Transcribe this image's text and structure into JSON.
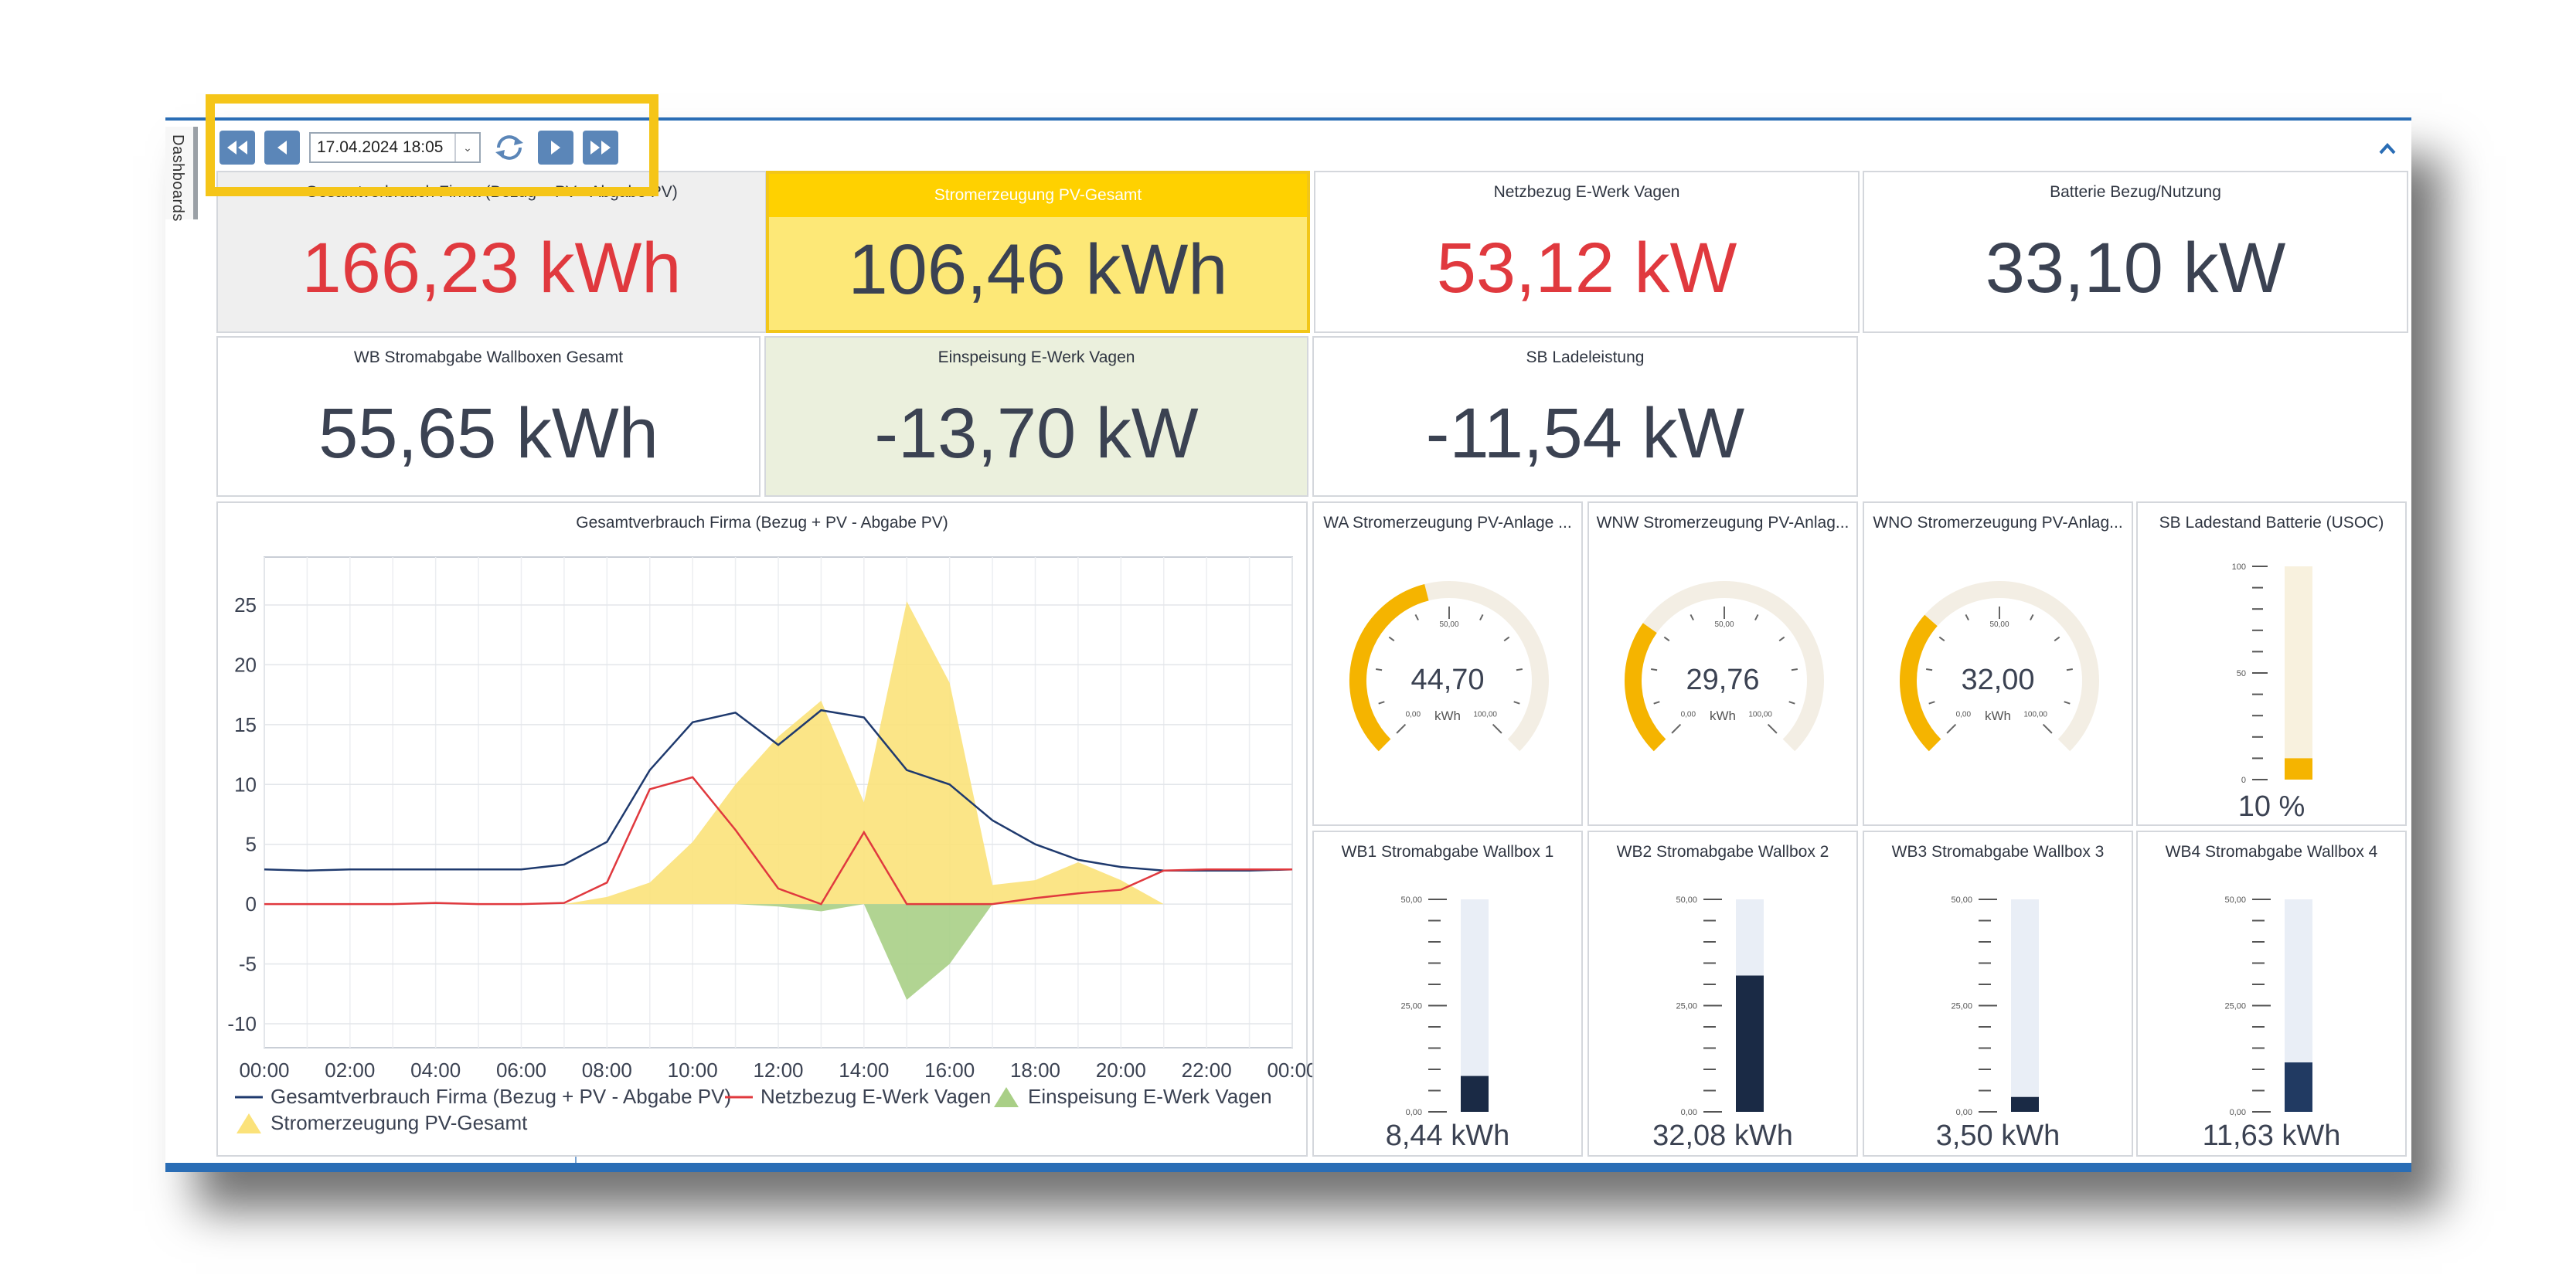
{
  "toolbar": {
    "datetime_value": "17.04.2024 18:05"
  },
  "sidebar": {
    "tab_label": "Dashboards"
  },
  "colors": {
    "accent_blue": "#2a6db5",
    "button_blue": "#5b86b8",
    "highlight": "#f5c518",
    "value_red": "#e0393e",
    "value_dark": "#3b4252",
    "gauge_orange": "#f5b400",
    "bar_navy": "#1a2a45"
  },
  "cards": {
    "gesamtverbrauch": {
      "title": "Gesamtverbrauch Firma (Bezug + PV - Abgabe PV)",
      "value": "166,23 kWh"
    },
    "stromerzeugung": {
      "title": "Stromerzeugung PV-Gesamt",
      "value": "106,46 kWh"
    },
    "netzbezug": {
      "title": "Netzbezug E-Werk Vagen",
      "value": "53,12 kW"
    },
    "batterie": {
      "title": "Batterie Bezug/Nutzung",
      "value": "33,10 kW"
    },
    "wallboxen": {
      "title": "WB Stromabgabe Wallboxen Gesamt",
      "value": "55,65 kWh"
    },
    "einspeisung": {
      "title": "Einspeisung E-Werk Vagen",
      "value": "-13,70 kW"
    },
    "ladeleistung": {
      "title": "SB Ladeleistung",
      "value": "-11,54 kW"
    }
  },
  "gauges": [
    {
      "title": "WA Stromerzeugung PV-Anlage ...",
      "value": "44,70",
      "unit": "kWh",
      "min_label": "0,00",
      "mid_label": "50,00",
      "max_label": "100,00",
      "fraction": 0.447
    },
    {
      "title": "WNW Stromerzeugung PV-Anlag...",
      "value": "29,76",
      "unit": "kWh",
      "min_label": "0,00",
      "mid_label": "50,00",
      "max_label": "100,00",
      "fraction": 0.2976
    },
    {
      "title": "WNO Stromerzeugung PV-Anlag...",
      "value": "32,00",
      "unit": "kWh",
      "min_label": "0,00",
      "mid_label": "50,00",
      "max_label": "100,00",
      "fraction": 0.32
    }
  ],
  "battery": {
    "title": "SB Ladestand Batterie (USOC)",
    "value": "10 %",
    "fraction": 0.1,
    "ticks": [
      "100",
      "50",
      "0"
    ]
  },
  "wallboxes": [
    {
      "title": "WB1 Stromabgabe Wallbox 1",
      "value": "8,44 kWh",
      "fraction": 0.1688
    },
    {
      "title": "WB2 Stromabgabe Wallbox 2",
      "value": "32,08 kWh",
      "fraction": 0.6416
    },
    {
      "title": "WB3 Stromabgabe Wallbox 3",
      "value": "3,50 kWh",
      "fraction": 0.07
    },
    {
      "title": "WB4 Stromabgabe Wallbox 4",
      "value": "11,63 kWh",
      "fraction": 0.2326
    }
  ],
  "wallbox_ticks": [
    "50,00",
    "25,00",
    "0,00"
  ],
  "chart_data": {
    "type": "line",
    "title": "Gesamtverbrauch Firma (Bezug + PV - Abgabe PV)",
    "x": [
      0,
      1,
      2,
      3,
      4,
      5,
      6,
      7,
      8,
      9,
      10,
      11,
      12,
      13,
      14,
      15,
      16,
      17,
      18,
      19,
      20,
      21,
      22,
      23,
      24
    ],
    "x_tick_labels": [
      "00:00",
      "02:00",
      "04:00",
      "06:00",
      "08:00",
      "10:00",
      "12:00",
      "14:00",
      "16:00",
      "18:00",
      "20:00",
      "22:00",
      "00:00"
    ],
    "y_ticks": [
      "25",
      "20",
      "15",
      "10",
      "5",
      "0",
      "-5",
      "-10"
    ],
    "ylim": [
      -12,
      29
    ],
    "series": [
      {
        "name": "Gesamtverbrauch Firma (Bezug + PV - Abgabe PV)",
        "kind": "line",
        "color": "#1f3a6e",
        "values": [
          2.9,
          2.8,
          2.9,
          2.9,
          2.9,
          2.9,
          2.9,
          3.3,
          5.2,
          11.2,
          15.2,
          16.0,
          13.3,
          16.2,
          15.6,
          11.2,
          10.0,
          7.0,
          5.0,
          3.7,
          3.1,
          2.8,
          2.8,
          2.8,
          2.9
        ]
      },
      {
        "name": "Netzbezug E-Werk Vagen",
        "kind": "line",
        "color": "#e0393e",
        "values": [
          0.0,
          0.0,
          0.0,
          0.0,
          0.1,
          0.0,
          0.0,
          0.1,
          1.8,
          9.6,
          10.6,
          6.2,
          1.3,
          0.0,
          6.0,
          0.0,
          0.0,
          0.0,
          0.5,
          0.9,
          1.2,
          2.8,
          2.9,
          2.9,
          2.9
        ]
      },
      {
        "name": "Einspeisung E-Werk Vagen",
        "kind": "area",
        "color": "#a9cf86",
        "values": [
          0,
          0,
          0,
          0,
          0,
          0,
          0,
          0,
          0,
          0,
          0,
          0,
          -0.2,
          -0.6,
          0,
          -8.0,
          -5.0,
          0,
          0,
          0,
          0,
          0,
          0,
          0,
          0
        ]
      },
      {
        "name": "Stromerzeugung PV-Gesamt",
        "kind": "area",
        "color": "#fbe27a",
        "values": [
          0,
          0,
          0,
          0,
          0,
          0,
          0,
          0,
          0.6,
          1.8,
          5.2,
          10.0,
          14.0,
          17.0,
          8.5,
          25.3,
          18.5,
          1.6,
          2.0,
          3.5,
          2.0,
          0,
          0,
          0,
          0
        ]
      }
    ]
  }
}
